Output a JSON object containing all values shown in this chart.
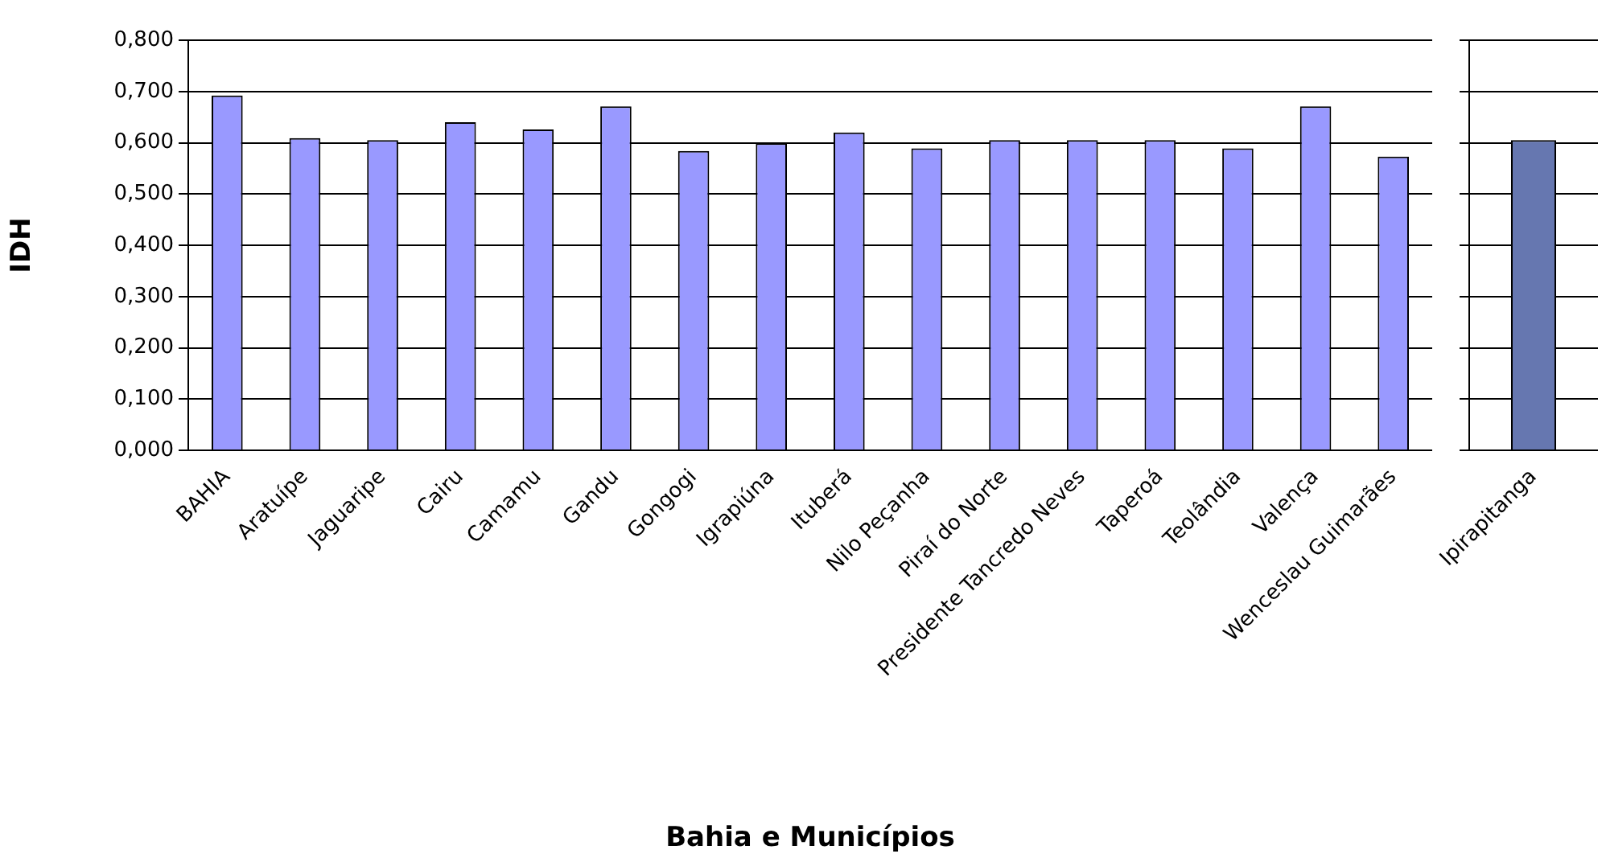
{
  "chart_data": [
    {
      "type": "bar",
      "xlabel": "Bahia e Municípios",
      "ylabel": "IDH",
      "color": "#9999ff",
      "grid": "y",
      "categories": [
        "BAHIA",
        "Aratuípe",
        "Jaguaripe",
        "Cairu",
        "Camamu",
        "Gandu",
        "Gongogi",
        "Igrapiúna",
        "Ituberá",
        "Nilo Peçanha",
        "Piraí do Norte",
        "Presidente Tancredo Neves",
        "Taperoá",
        "Teolândia",
        "Valença",
        "Wenceslau Guimarães"
      ],
      "values": [
        0.692,
        0.609,
        0.605,
        0.64,
        0.626,
        0.671,
        0.584,
        0.599,
        0.62,
        0.589,
        0.605,
        0.605,
        0.605,
        0.589,
        0.671,
        0.573
      ],
      "ylim": [
        0,
        0.8
      ],
      "yticks": [
        {
          "value": 0,
          "label": "0,000"
        },
        {
          "value": 0.1,
          "label": "0,100"
        },
        {
          "value": 0.2,
          "label": "0,200"
        },
        {
          "value": 0.3,
          "label": "0,300"
        },
        {
          "value": 0.4,
          "label": "0,400"
        },
        {
          "value": 0.5,
          "label": "0,500"
        },
        {
          "value": 0.6,
          "label": "0,600"
        },
        {
          "value": 0.7,
          "label": "0,700"
        },
        {
          "value": 0.8,
          "label": "0,800"
        }
      ]
    },
    {
      "type": "bar",
      "color": "#6677b0",
      "grid": "y",
      "tick_labels": "x",
      "categories": [
        "Ipirapitanga"
      ],
      "values": [
        0.605
      ],
      "ylim": [
        0,
        0.8
      ],
      "yticks": [
        {
          "value": 0,
          "label": null
        },
        {
          "value": 0.1,
          "label": null
        },
        {
          "value": 0.2,
          "label": null
        },
        {
          "value": 0.3,
          "label": null
        },
        {
          "value": 0.4,
          "label": null
        },
        {
          "value": 0.5,
          "label": null
        },
        {
          "value": 0.6,
          "label": null
        },
        {
          "value": 0.7,
          "label": null
        },
        {
          "value": 0.8,
          "label": null
        }
      ]
    }
  ]
}
